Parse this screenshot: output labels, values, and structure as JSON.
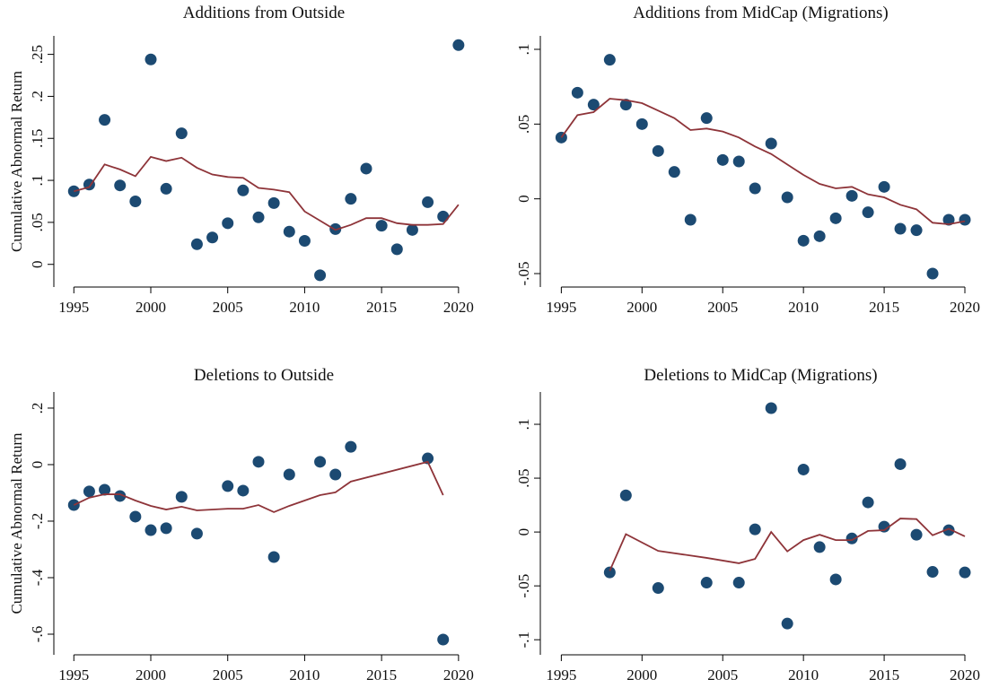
{
  "chart_data": [
    {
      "type": "scatter",
      "title": "Additions from Outside",
      "y_label": "Cumulative Abnormal Return",
      "x": [
        1995,
        1996,
        1997,
        1998,
        1999,
        2000,
        2001,
        2002,
        2003,
        2004,
        2005,
        2006,
        2007,
        2008,
        2009,
        2010,
        2011,
        2012,
        2013,
        2014,
        2015,
        2016,
        2017,
        2018,
        2019,
        2020
      ],
      "series": [
        {
          "type": "scatter",
          "color": "#1c4a72",
          "values": [
            0.087,
            0.095,
            0.172,
            0.094,
            0.075,
            0.244,
            0.09,
            0.156,
            0.024,
            0.032,
            0.049,
            0.088,
            0.056,
            0.073,
            0.039,
            0.028,
            -0.013,
            0.042,
            0.078,
            0.114,
            0.046,
            0.018,
            0.041,
            0.074,
            0.057,
            0.261
          ]
        },
        {
          "type": "line",
          "color": "#8e3439",
          "values": [
            0.087,
            0.092,
            0.119,
            0.113,
            0.105,
            0.128,
            0.123,
            0.127,
            0.115,
            0.107,
            0.104,
            0.103,
            0.091,
            0.089,
            0.086,
            0.063,
            0.052,
            0.041,
            0.047,
            0.055,
            0.055,
            0.049,
            0.047,
            0.047,
            0.048,
            0.071
          ]
        }
      ],
      "xlim": [
        1993.7,
        2021
      ],
      "xticks": [
        1995,
        2000,
        2005,
        2010,
        2015,
        2020
      ],
      "ylim": [
        -0.027,
        0.272
      ],
      "yticks": [
        0,
        {
          "value": 0.05,
          "label": ".05"
        },
        {
          "value": 0.1,
          "label": ".1"
        },
        {
          "value": 0.15,
          "label": ".15"
        },
        {
          "value": 0.2,
          "label": ".2"
        },
        {
          "value": 0.25,
          "label": ".25"
        }
      ]
    },
    {
      "type": "scatter",
      "title": "Additions from MidCap (Migrations)",
      "x": [
        1995,
        1996,
        1997,
        1998,
        1999,
        2000,
        2001,
        2002,
        2003,
        2004,
        2005,
        2006,
        2007,
        2008,
        2009,
        2010,
        2011,
        2012,
        2013,
        2014,
        2015,
        2016,
        2017,
        2018,
        2019,
        2020
      ],
      "series": [
        {
          "type": "scatter",
          "color": "#1c4a72",
          "values": [
            0.041,
            0.071,
            0.063,
            0.093,
            0.063,
            0.05,
            0.032,
            0.018,
            -0.014,
            0.054,
            0.026,
            0.025,
            0.007,
            0.037,
            0.001,
            -0.028,
            -0.025,
            -0.013,
            0.002,
            -0.009,
            0.008,
            -0.02,
            -0.021,
            -0.05,
            -0.014,
            -0.014
          ]
        },
        {
          "type": "line",
          "color": "#8e3439",
          "values": [
            0.041,
            0.056,
            0.058,
            0.067,
            0.066,
            0.064,
            0.059,
            0.054,
            0.046,
            0.047,
            0.045,
            0.041,
            0.035,
            0.03,
            0.023,
            0.016,
            0.01,
            0.007,
            0.008,
            0.003,
            0.001,
            -0.004,
            -0.007,
            -0.016,
            -0.017,
            -0.015
          ]
        }
      ],
      "xlim": [
        1993.7,
        2021
      ],
      "xticks": [
        1995,
        2000,
        2005,
        2010,
        2015,
        2020
      ],
      "ylim": [
        -0.059,
        0.109
      ],
      "yticks": [
        {
          "value": -0.05,
          "label": "-.05"
        },
        0,
        {
          "value": 0.05,
          "label": ".05"
        },
        {
          "value": 0.1,
          "label": ".1"
        }
      ]
    },
    {
      "type": "scatter",
      "title": "Deletions to Outside",
      "y_label": "Cumulative Abnormal Return",
      "x": [
        1995,
        1996,
        1997,
        1998,
        1999,
        2000,
        2001,
        2002,
        2003,
        2005,
        2006,
        2007,
        2008,
        2009,
        2011,
        2012,
        2013,
        2018,
        2019
      ],
      "series": [
        {
          "type": "scatter",
          "color": "#1c4a72",
          "values": [
            -0.143,
            -0.095,
            -0.089,
            -0.111,
            -0.184,
            -0.232,
            -0.225,
            -0.114,
            -0.244,
            -0.076,
            -0.092,
            0.01,
            -0.327,
            -0.035,
            0.01,
            -0.035,
            0.063,
            0.022,
            -0.619
          ]
        },
        {
          "type": "line",
          "color": "#8e3439",
          "values": [
            -0.143,
            -0.117,
            -0.105,
            -0.105,
            -0.127,
            -0.146,
            -0.159,
            -0.149,
            -0.162,
            -0.156,
            -0.156,
            -0.143,
            -0.168,
            -0.146,
            -0.108,
            -0.098,
            -0.06,
            0.01,
            -0.108
          ]
        }
      ],
      "xlim": [
        1993.7,
        2021
      ],
      "xticks": [
        1995,
        2000,
        2005,
        2010,
        2015,
        2020
      ],
      "ylim": [
        -0.673,
        0.257
      ],
      "yticks": [
        {
          "value": -0.6,
          "label": "-.6"
        },
        {
          "value": -0.4,
          "label": "-.4"
        },
        {
          "value": -0.2,
          "label": "-.2"
        },
        0,
        {
          "value": 0.2,
          "label": ".2"
        }
      ]
    },
    {
      "type": "scatter",
      "title": "Deletions to MidCap (Migrations)",
      "x": [
        1998,
        1999,
        2001,
        2004,
        2006,
        2007,
        2008,
        2009,
        2010,
        2011,
        2012,
        2013,
        2014,
        2015,
        2016,
        2017,
        2018,
        2019,
        2020
      ],
      "series": [
        {
          "type": "scatter",
          "color": "#1c4a72",
          "values": [
            -0.0375,
            0.034,
            -0.052,
            -0.047,
            -0.047,
            0.0025,
            0.115,
            -0.085,
            0.058,
            -0.014,
            -0.044,
            -0.006,
            0.0275,
            0.005,
            0.063,
            -0.0025,
            -0.037,
            0.0017,
            -0.0375
          ]
        },
        {
          "type": "line",
          "color": "#8e3439",
          "values": [
            -0.036,
            -0.002,
            -0.0175,
            -0.024,
            -0.029,
            -0.025,
            0,
            -0.018,
            -0.0075,
            -0.0025,
            -0.0075,
            -0.0075,
            0.001,
            0.0017,
            0.0125,
            0.012,
            -0.003,
            0.003,
            -0.004
          ]
        }
      ],
      "xlim": [
        1993.7,
        2021
      ],
      "xticks": [
        1995,
        2000,
        2005,
        2010,
        2015,
        2020
      ],
      "ylim": [
        -0.114,
        0.13
      ],
      "yticks": [
        {
          "value": -0.1,
          "label": "-.1"
        },
        {
          "value": -0.05,
          "label": "-.05"
        },
        0,
        {
          "value": 0.05,
          "label": ".05"
        },
        {
          "value": 0.1,
          "label": ".1"
        }
      ]
    }
  ]
}
